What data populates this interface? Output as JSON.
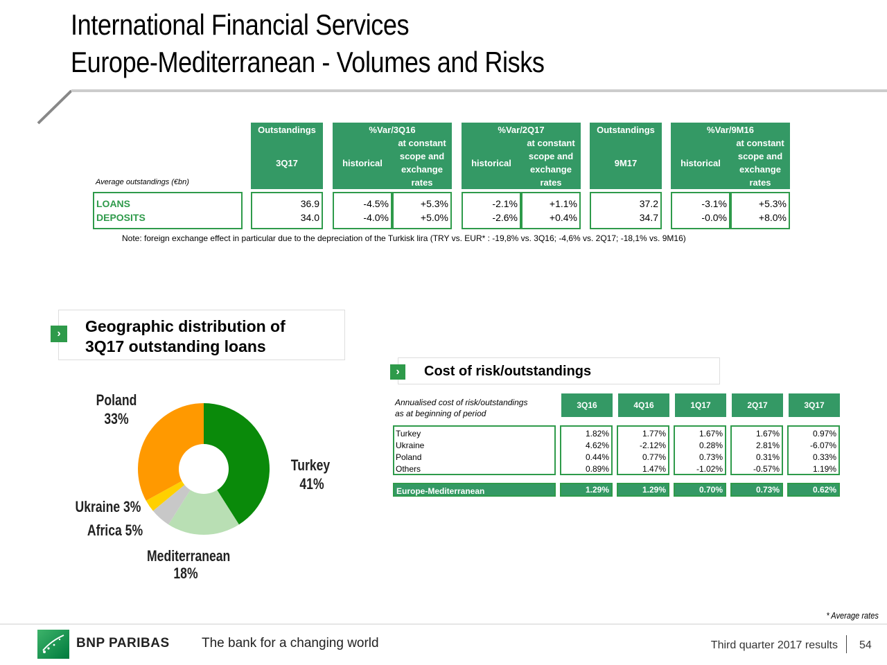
{
  "title": {
    "line1": "International Financial Services",
    "line2": "Europe-Mediterranean - Volumes and Risks"
  },
  "volumes": {
    "avg_label": "Average outstandings (€bn)",
    "headers": {
      "outstandings": "Outstandings",
      "var3q16": "%Var/3Q16",
      "var2q17": "%Var/2Q17",
      "outstandings2": "Outstandings",
      "var9m16": "%Var/9M16",
      "q317": "3Q17",
      "historical": "historical",
      "at_constant": "at constant",
      "scope_and": "scope and",
      "exchange": "exchange",
      "rates": "rates",
      "m917": "9M17"
    },
    "rows": [
      {
        "label": "LOANS",
        "o3q17": "36.9",
        "h3q16": "-4.5%",
        "c3q16": "+5.3%",
        "h2q17": "-2.1%",
        "c2q17": "+1.1%",
        "o9m17": "37.2",
        "h9m16": "-3.1%",
        "c9m16": "+5.3%"
      },
      {
        "label": "DEPOSITS",
        "o3q17": "34.0",
        "h3q16": "-4.0%",
        "c3q16": "+5.0%",
        "h2q17": "-2.6%",
        "c2q17": "+0.4%",
        "o9m17": "34.7",
        "h9m16": "-0.0%",
        "c9m16": "+8.0%"
      }
    ],
    "note": "Note: foreign exchange effect  in particular due to the depreciation of the Turkisk lira (TRY vs. EUR* : -19,8% vs. 3Q16; -4,6% vs. 2Q17; -18,1% vs. 9M16)"
  },
  "geo": {
    "heading_line1": "Geographic distribution of",
    "heading_line2": "3Q17 outstanding loans",
    "chevron": "›",
    "labels": {
      "poland": "Poland",
      "poland_pct": "33%",
      "turkey": "Turkey",
      "turkey_pct": "41%",
      "ukraine": "Ukraine 3%",
      "africa": "Africa 5%",
      "med": "Mediterranean",
      "med_pct": "18%"
    }
  },
  "chart_data": {
    "type": "pie",
    "donut": true,
    "slices": [
      {
        "name": "Turkey",
        "value": 41,
        "color": "#0a8a0a"
      },
      {
        "name": "Mediterranean",
        "value": 18,
        "color": "#b9dfb4"
      },
      {
        "name": "Africa",
        "value": 5,
        "color": "#c8c8c8"
      },
      {
        "name": "Ukraine",
        "value": 3,
        "color": "#ffd000"
      },
      {
        "name": "Poland",
        "value": 33,
        "color": "#ff9900"
      }
    ]
  },
  "cor": {
    "heading": "Cost of risk/outstandings",
    "chevron": "›",
    "sub1": "Annualised cost of risk/outstandings",
    "sub2": "as at beginning of period",
    "columns": [
      "3Q16",
      "4Q16",
      "1Q17",
      "2Q17",
      "3Q17"
    ],
    "rows": [
      {
        "label": "Turkey",
        "values": [
          "1.82%",
          "1.77%",
          "1.67%",
          "1.67%",
          "0.97%"
        ]
      },
      {
        "label": "Ukraine",
        "values": [
          "4.62%",
          "-2.12%",
          "0.28%",
          "2.81%",
          "-6.07%"
        ]
      },
      {
        "label": "Poland",
        "values": [
          "0.44%",
          "0.77%",
          "0.73%",
          "0.31%",
          "0.33%"
        ]
      },
      {
        "label": "Others",
        "values": [
          "0.89%",
          "1.47%",
          "-1.02%",
          "-0.57%",
          "1.19%"
        ]
      }
    ],
    "total": {
      "label": "Europe-Mediterranean",
      "values": [
        "1.29%",
        "1.29%",
        "0.70%",
        "0.73%",
        "0.62%"
      ]
    }
  },
  "footnote": "* Average rates",
  "footer": {
    "brand": "BNP PARIBAS",
    "tagline": "The bank for a changing world",
    "report": "Third quarter 2017 results",
    "page": "54"
  },
  "colors": {
    "green": "#349965",
    "accent": "#2e9a4a"
  }
}
